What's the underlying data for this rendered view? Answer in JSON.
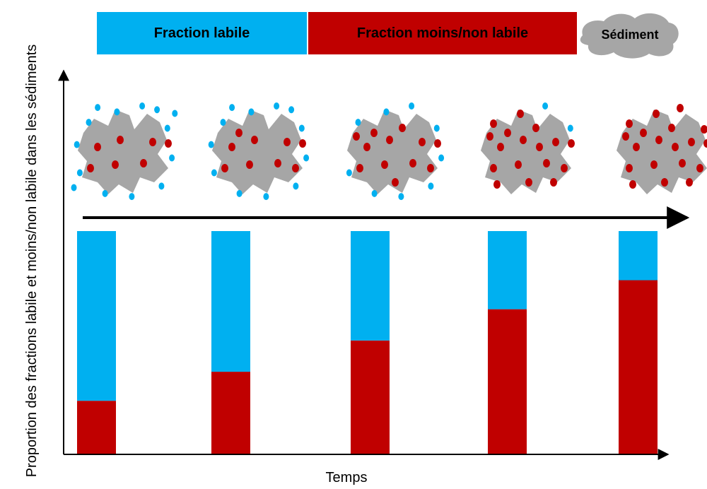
{
  "colors": {
    "labile": "#00B0F0",
    "non_labile": "#C00000",
    "sediment": "#A6A6A6",
    "axis": "#000000"
  },
  "legend": {
    "labile_label": "Fraction labile",
    "non_labile_label": "Fraction moins/non labile",
    "sediment_label": "Sédiment"
  },
  "chart_data": {
    "type": "bar",
    "stacked": true,
    "categories": [
      "",
      "",
      "",
      "",
      ""
    ],
    "series": [
      {
        "name": "Fraction moins/non labile",
        "values": [
          24,
          37,
          51,
          65,
          78
        ]
      },
      {
        "name": "Fraction labile",
        "values": [
          76,
          63,
          49,
          35,
          22
        ]
      }
    ],
    "ylim": [
      0,
      100
    ],
    "xlabel": "Temps",
    "ylabel": "Proportion des fractions labile et moins/non labile dans les sédiments",
    "grid": false,
    "legend": "top"
  },
  "illustrations": [
    {
      "blue_dots": 14,
      "red_dots": 7
    },
    {
      "blue_dots": 12,
      "red_dots": 9
    },
    {
      "blue_dots": 9,
      "red_dots": 12
    },
    {
      "blue_dots": 4,
      "red_dots": 17
    },
    {
      "blue_dots": 2,
      "red_dots": 19
    }
  ]
}
